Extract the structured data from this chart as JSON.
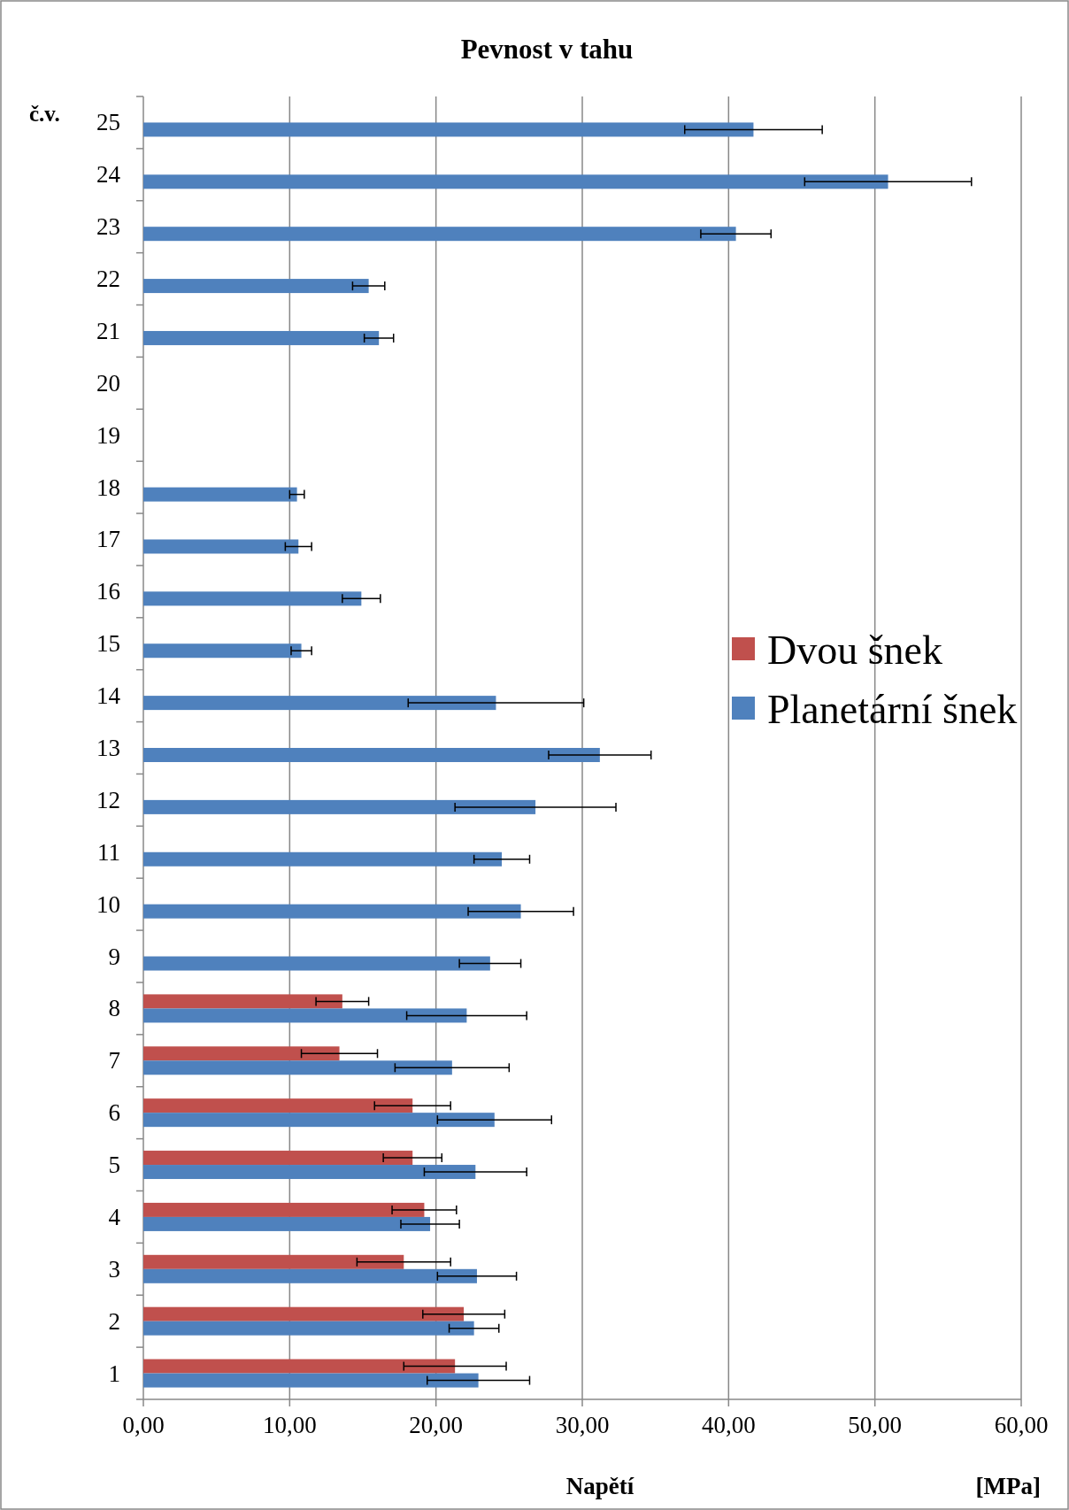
{
  "chart_data": {
    "type": "bar",
    "orientation": "horizontal",
    "title": "Pevnost v tahu",
    "xlabel": "Napětí",
    "ylabel": "č.v.",
    "annotations": [
      "[MPa]"
    ],
    "categories": [
      "25",
      "24",
      "23",
      "22",
      "21",
      "20",
      "19",
      "18",
      "17",
      "16",
      "15",
      "14",
      "13",
      "12",
      "11",
      "10",
      "9",
      "8",
      "7",
      "6",
      "5",
      "4",
      "3",
      "2",
      "1"
    ],
    "series": [
      {
        "name": "Dvou šnek",
        "color": "#c0504d",
        "values": [
          null,
          null,
          null,
          null,
          null,
          null,
          null,
          null,
          null,
          null,
          null,
          null,
          null,
          null,
          null,
          null,
          null,
          13.6,
          13.4,
          18.4,
          18.4,
          19.2,
          17.8,
          21.9,
          21.3
        ],
        "errors": [
          null,
          null,
          null,
          null,
          null,
          null,
          null,
          null,
          null,
          null,
          null,
          null,
          null,
          null,
          null,
          null,
          null,
          1.8,
          2.6,
          2.6,
          2.0,
          2.2,
          3.2,
          2.8,
          3.5
        ]
      },
      {
        "name": "Planetární šnek",
        "color": "#4f81bd",
        "values": [
          41.7,
          50.9,
          40.5,
          15.4,
          16.1,
          null,
          null,
          10.5,
          10.6,
          14.9,
          10.8,
          24.1,
          31.2,
          26.8,
          24.5,
          25.8,
          23.7,
          22.1,
          21.1,
          24.0,
          22.7,
          19.6,
          22.8,
          22.6,
          22.9
        ],
        "errors": [
          4.7,
          5.7,
          2.4,
          1.1,
          1.0,
          null,
          null,
          0.5,
          0.9,
          1.3,
          0.7,
          6.0,
          3.5,
          5.5,
          1.9,
          3.6,
          2.1,
          4.1,
          3.9,
          3.9,
          3.5,
          2.0,
          2.7,
          1.7,
          3.5
        ]
      }
    ],
    "xlim": [
      0,
      60
    ],
    "xticks": [
      {
        "value": 0,
        "label": "0,00"
      },
      {
        "value": 10,
        "label": "10,00"
      },
      {
        "value": 20,
        "label": "20,00"
      },
      {
        "value": 30,
        "label": "30,00"
      },
      {
        "value": 40,
        "label": "40,00"
      },
      {
        "value": 50,
        "label": "50,00"
      },
      {
        "value": 60,
        "label": "60,00"
      }
    ],
    "grid": "x",
    "legend": "right"
  }
}
